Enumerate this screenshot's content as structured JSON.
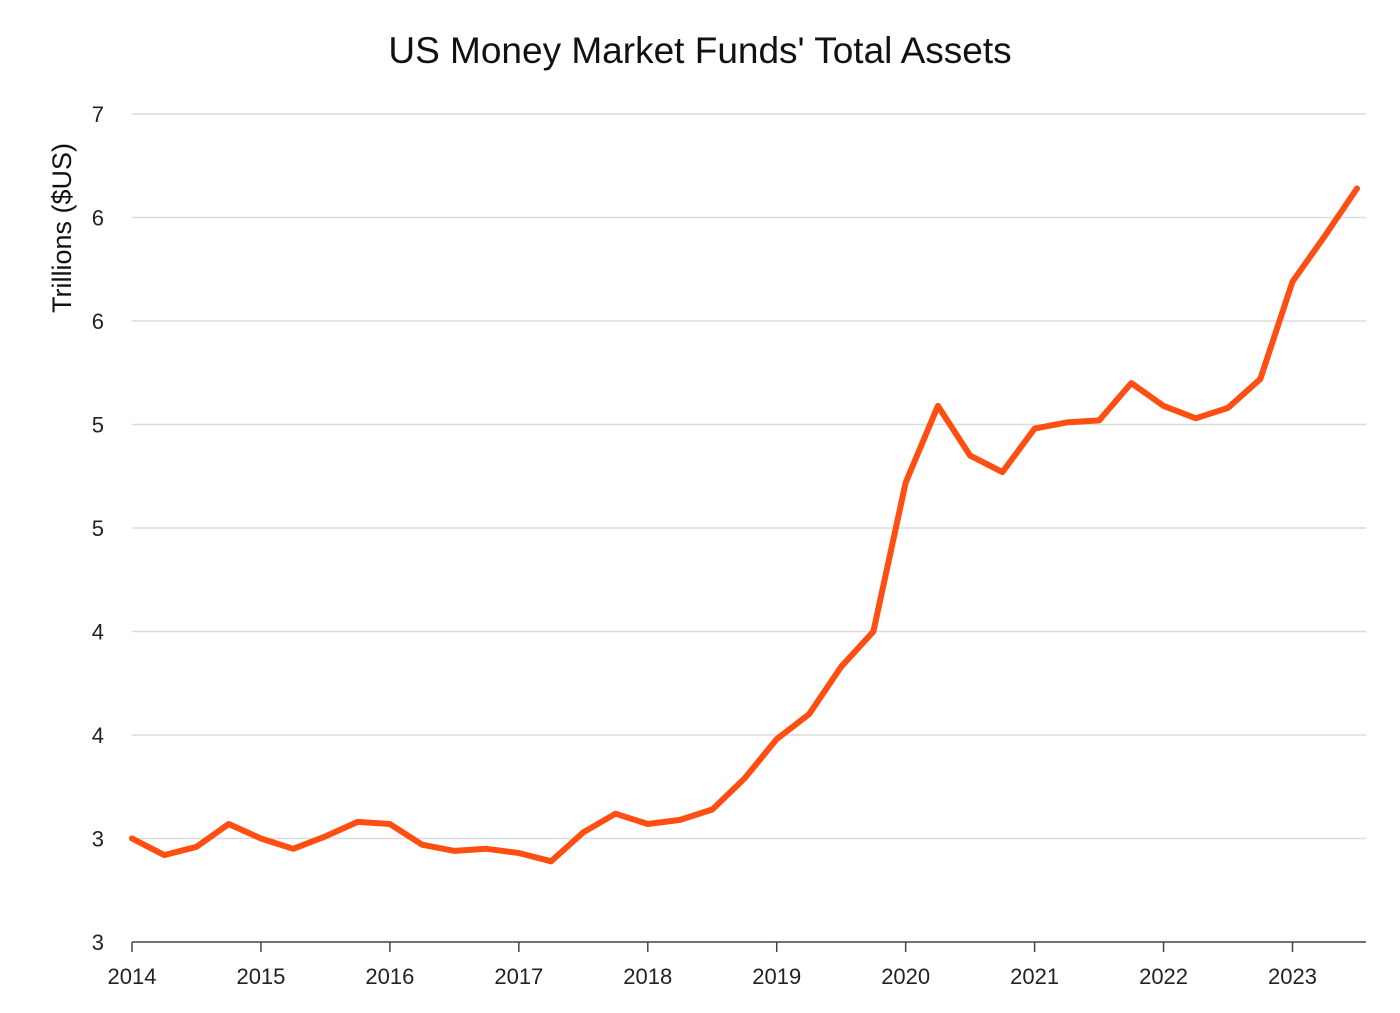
{
  "chart_data": {
    "type": "line",
    "title": "US Money Market Funds' Total Assets",
    "xlabel": "",
    "ylabel": "Trillions ($US)",
    "xlim": [
      2014,
      2023.57
    ],
    "ylim": [
      2.5,
      6.5
    ],
    "grid": "horizontal",
    "legend": "none",
    "colors": {
      "line": "#ff4e12",
      "grid": "#dcdcdc",
      "axis": "#444444"
    },
    "x_ticks": [
      {
        "value": 2014,
        "label": "2014"
      },
      {
        "value": 2015,
        "label": "2015"
      },
      {
        "value": 2016,
        "label": "2016"
      },
      {
        "value": 2017,
        "label": "2017"
      },
      {
        "value": 2018,
        "label": "2018"
      },
      {
        "value": 2019,
        "label": "2019"
      },
      {
        "value": 2020,
        "label": "2020"
      },
      {
        "value": 2021,
        "label": "2021"
      },
      {
        "value": 2022,
        "label": "2022"
      },
      {
        "value": 2023,
        "label": "2023"
      }
    ],
    "y_ticks": [
      {
        "value": 2.5,
        "label": "3"
      },
      {
        "value": 3.0,
        "label": "3"
      },
      {
        "value": 3.5,
        "label": "4"
      },
      {
        "value": 4.0,
        "label": "4"
      },
      {
        "value": 4.5,
        "label": "5"
      },
      {
        "value": 5.0,
        "label": "5"
      },
      {
        "value": 5.5,
        "label": "6"
      },
      {
        "value": 6.0,
        "label": "6"
      },
      {
        "value": 6.5,
        "label": "7"
      }
    ],
    "series": [
      {
        "x": [
          2014.0,
          2014.25,
          2014.5,
          2014.75,
          2015.0,
          2015.25,
          2015.5,
          2015.75,
          2016.0,
          2016.25,
          2016.5,
          2016.75,
          2017.0,
          2017.25,
          2017.5,
          2017.75,
          2018.0,
          2018.25,
          2018.5,
          2018.75,
          2019.0,
          2019.25,
          2019.5,
          2019.75,
          2020.0,
          2020.25,
          2020.5,
          2020.75,
          2021.0,
          2021.25,
          2021.5,
          2021.75,
          2022.0,
          2022.25,
          2022.5,
          2022.75,
          2023.0,
          2023.25,
          2023.5
        ],
        "values": [
          3.0,
          2.92,
          2.96,
          3.07,
          3.0,
          2.95,
          3.01,
          3.08,
          3.07,
          2.97,
          2.94,
          2.95,
          2.93,
          2.89,
          3.03,
          3.12,
          3.07,
          3.09,
          3.14,
          3.29,
          3.48,
          3.6,
          3.83,
          4.0,
          4.72,
          5.09,
          4.85,
          4.77,
          4.98,
          5.01,
          5.02,
          5.2,
          5.09,
          5.03,
          5.08,
          5.22,
          5.69,
          5.91,
          6.14
        ]
      }
    ]
  }
}
